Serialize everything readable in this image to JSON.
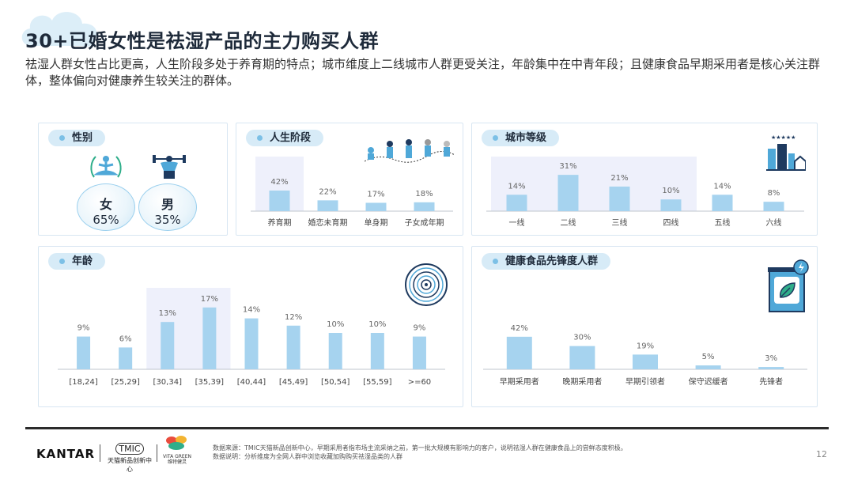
{
  "header": {
    "title": "30+已婚女性是祛湿产品的主力购买人群",
    "subtitle": "祛湿人群女性占比更高，人生阶段多处于养育期的特点；城市维度上二线城市人群更受关注，年龄集中在中青年段；且健康食品早期采用者是核心关注群体，整体偏向对健康养生较关注的群体。"
  },
  "gender": {
    "title": "性别",
    "female_label": "女",
    "female_value": "65%",
    "male_label": "男",
    "male_value": "35%"
  },
  "life_stage": {
    "title": "人生阶段"
  },
  "city": {
    "title": "城市等级",
    "stars": "★★★★★"
  },
  "age": {
    "title": "年龄"
  },
  "pioneer": {
    "title": "健康食品先锋度人群"
  },
  "colors": {
    "bar": "#a6d3ef",
    "highlight": "#eef0fb",
    "accent": "#7cc0e6",
    "pill": "#d7ebf7"
  },
  "chart_data": [
    {
      "type": "bar",
      "title": "人生阶段",
      "categories": [
        "养育期",
        "婚恋未育期",
        "单身期",
        "子女成年期"
      ],
      "values": [
        42,
        22,
        17,
        18
      ],
      "labels": [
        "42%",
        "22%",
        "17%",
        "18%"
      ],
      "highlight": [
        0,
        1
      ]
    },
    {
      "type": "bar",
      "title": "城市等级",
      "categories": [
        "一线",
        "二线",
        "三线",
        "四线",
        "五线",
        "六线"
      ],
      "values": [
        14,
        31,
        21,
        10,
        14,
        8
      ],
      "labels": [
        "14%",
        "31%",
        "21%",
        "10%",
        "14%",
        "8%"
      ],
      "highlight": [
        0,
        4
      ]
    },
    {
      "type": "bar",
      "title": "年龄",
      "categories": [
        "[18,24]",
        "[25,29]",
        "[30,34]",
        "[35,39]",
        "[40,44]",
        "[45,49]",
        "[50,54]",
        "[55,59]",
        ">=60"
      ],
      "values": [
        9,
        6,
        13,
        17,
        14,
        12,
        10,
        10,
        9
      ],
      "labels": [
        "9%",
        "6%",
        "13%",
        "17%",
        "14%",
        "12%",
        "10%",
        "10%",
        "9%"
      ],
      "highlight": [
        2,
        4
      ]
    },
    {
      "type": "bar",
      "title": "健康食品先锋度人群",
      "categories": [
        "早期采用者",
        "晚期采用者",
        "早期引领者",
        "保守迟缓者",
        "先锋者"
      ],
      "values": [
        42,
        30,
        19,
        5,
        3
      ],
      "labels": [
        "42%",
        "30%",
        "19%",
        "5%",
        "3%"
      ]
    }
  ],
  "footer": {
    "brand": "KANTAR",
    "tmic_logo": "TMIC",
    "tmic_text": "天猫新品创新中心",
    "vita_text1": "VITA GREEN",
    "vita_text2": "维特健灵",
    "note1": "数据来源：TMIC天猫新品创新中心，早期采用者指市场主流采纳之前，第一批大规模有影响力的客户，说明祛湿人群在健康食品上的尝鲜态度积极。",
    "note2": "数据说明：分析维度为全网人群中浏览收藏加购购买祛湿品类的人群",
    "page": "12"
  }
}
